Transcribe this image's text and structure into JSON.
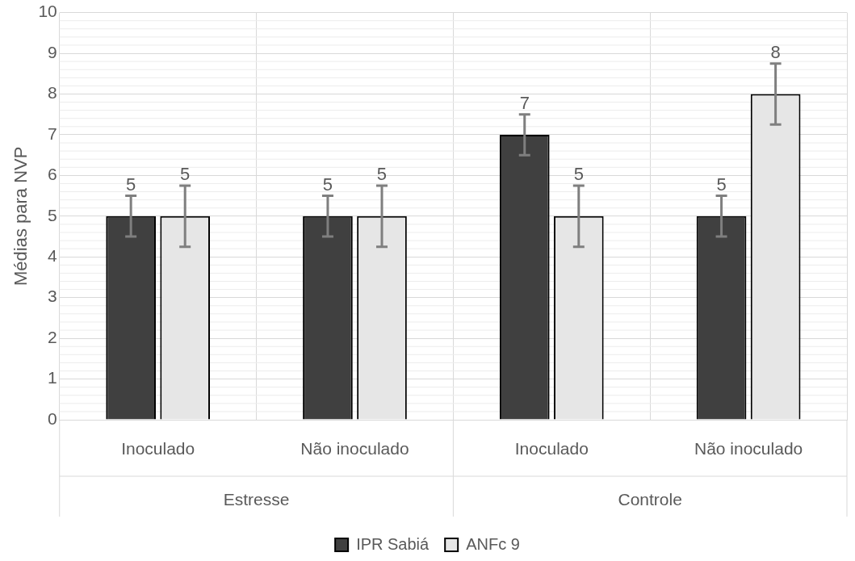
{
  "chart_data": {
    "type": "bar",
    "ylabel": "Médias para NVP",
    "categories": [
      "Inoculado",
      "Não inoculado",
      "Inoculado",
      "Não inoculado"
    ],
    "series": [
      {
        "name": "IPR Sabiá",
        "color": "#404040",
        "values": [
          5,
          5,
          7,
          5
        ],
        "errors": [
          0.5,
          0.5,
          0.5,
          0.5
        ]
      },
      {
        "name": "ANFc 9",
        "color": "#e6e6e6",
        "values": [
          5,
          5,
          5,
          8
        ],
        "errors": [
          0.75,
          0.75,
          0.75,
          0.75
        ]
      }
    ],
    "annotations": [
      "Estresse",
      "Controle"
    ],
    "ylim": [
      0,
      10
    ],
    "yticks": [
      0,
      1,
      2,
      3,
      4,
      5,
      6,
      7,
      8,
      9,
      10
    ],
    "grid": true,
    "legend": "bottom",
    "data_labels": true
  }
}
